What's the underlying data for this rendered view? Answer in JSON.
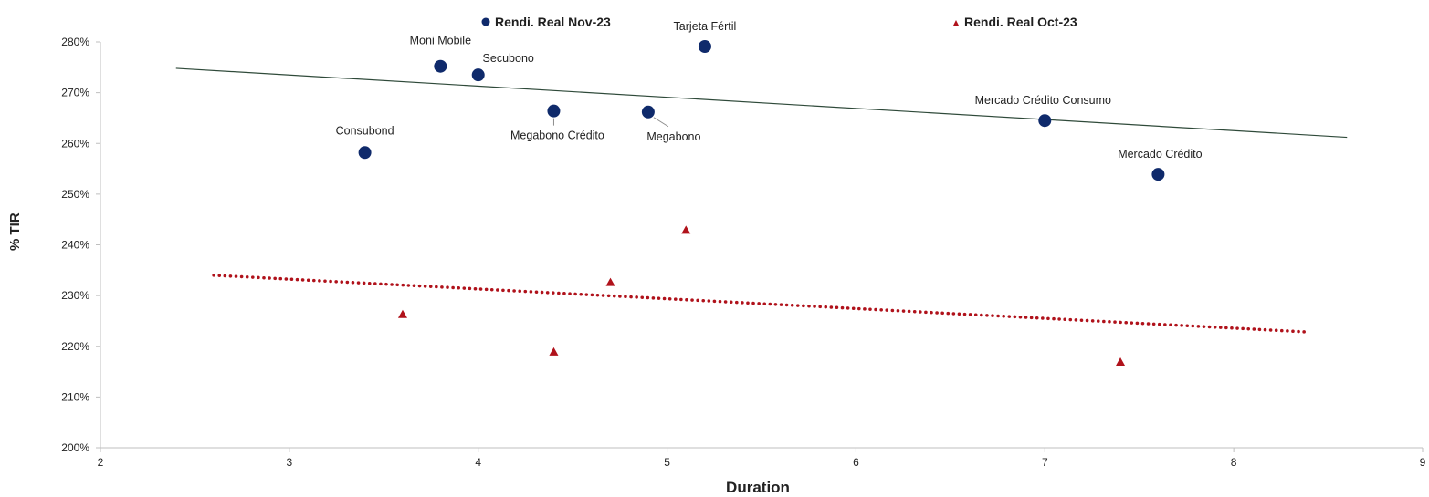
{
  "chart_data": {
    "type": "scatter",
    "xlabel": "Duration",
    "ylabel": "% TIR",
    "xlim": [
      2,
      9
    ],
    "ylim": [
      200,
      280
    ],
    "x_ticks": [
      "2",
      "3",
      "4",
      "5",
      "6",
      "7",
      "8",
      "9"
    ],
    "y_ticks": [
      "200%",
      "210%",
      "220%",
      "230%",
      "240%",
      "250%",
      "260%",
      "270%",
      "280%"
    ],
    "grid": false,
    "legend_position": "top",
    "series": [
      {
        "name": "Rendi. Real Nov-23",
        "marker": "circle",
        "color": "#0f2a6b",
        "points": [
          {
            "label": "Consubond",
            "x": 3.4,
            "y": 258.2
          },
          {
            "label": "Moni Mobile",
            "x": 3.8,
            "y": 275.2
          },
          {
            "label": "Secubono",
            "x": 4.0,
            "y": 273.5
          },
          {
            "label": "Megabono Crédito",
            "x": 4.4,
            "y": 266.4
          },
          {
            "label": "Megabono",
            "x": 4.9,
            "y": 266.2
          },
          {
            "label": "Tarjeta Fértil",
            "x": 5.2,
            "y": 279.1
          },
          {
            "label": "Mercado Crédito Consumo",
            "x": 7.0,
            "y": 264.5
          },
          {
            "label": "Mercado Crédito",
            "x": 7.6,
            "y": 253.9
          }
        ],
        "trendline": {
          "style": "solid",
          "color": "#2f4a3a",
          "from": [
            2.4,
            274.8
          ],
          "to": [
            8.6,
            261.2
          ]
        }
      },
      {
        "name": "Rendi. Real Oct-23",
        "marker": "triangle",
        "color": "#b0121b",
        "points": [
          {
            "x": 3.6,
            "y": 226.3
          },
          {
            "x": 4.4,
            "y": 218.9
          },
          {
            "x": 4.7,
            "y": 232.6
          },
          {
            "x": 5.1,
            "y": 242.9
          },
          {
            "x": 7.4,
            "y": 216.9
          }
        ],
        "trendline": {
          "style": "dotted",
          "color": "#b0121b",
          "from": [
            2.6,
            234.0
          ],
          "to": [
            8.4,
            222.8
          ]
        }
      }
    ]
  }
}
